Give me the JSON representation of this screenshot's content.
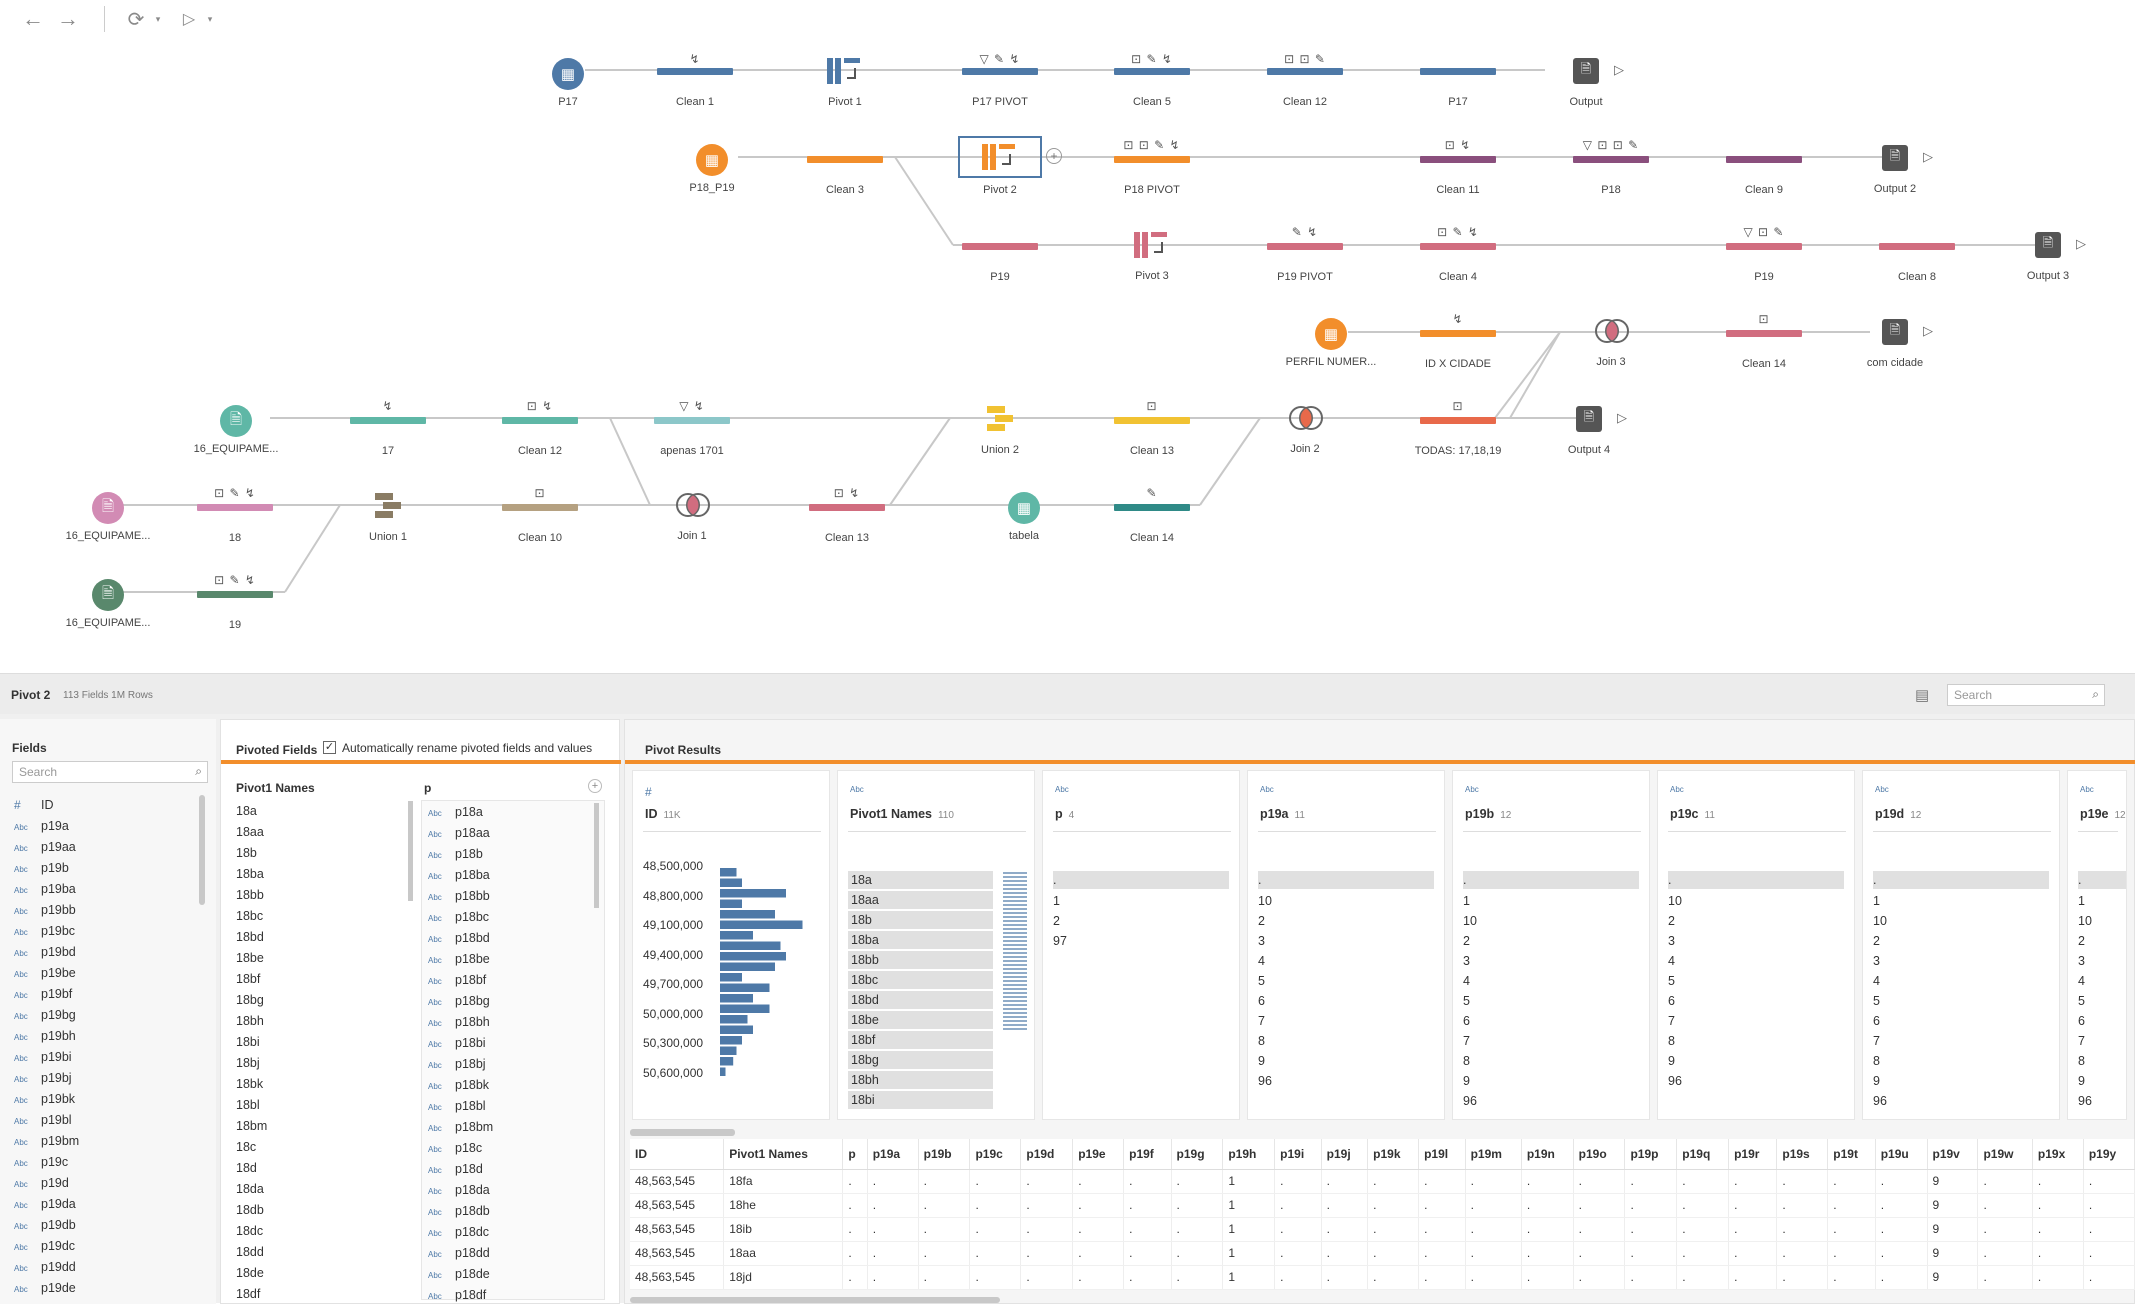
{
  "colors": {
    "blue": "#4e79a7",
    "orange": "#f28e2b",
    "purple": "#8a4f7d",
    "pink": "#d16d7f",
    "teal": "#5fb7a6",
    "lightteal": "#8cc7c9",
    "tan": "#b5a181",
    "gold": "#f1c232",
    "red": "#e8694a",
    "green": "#59886c",
    "lpink": "#d28bb4",
    "accent": "#f28e2b"
  },
  "flow": {
    "nodes": {
      "p17": "P17",
      "clean1": "Clean 1",
      "pivot1": "Pivot 1",
      "p17pivot": "P17 PIVOT",
      "clean5": "Clean 5",
      "clean12a": "Clean 12",
      "p17b": "P17",
      "output": "Output",
      "p18p19": "P18_P19",
      "clean3": "Clean 3",
      "pivot2": "Pivot 2",
      "p18pivot": "P18 PIVOT",
      "clean11": "Clean 11",
      "p18": "P18",
      "clean9": "Clean 9",
      "output2": "Output 2",
      "p19": "P19",
      "pivot3": "Pivot 3",
      "p19pivot": "P19 PIVOT",
      "clean4": "Clean 4",
      "p19b": "P19",
      "clean8": "Clean 8",
      "output3": "Output 3",
      "perfil": "PERFIL NUMER...",
      "idxcidade": "ID X CIDADE",
      "join3": "Join 3",
      "clean14b": "Clean 14",
      "comcidade": "com cidade",
      "equip1": "16_EQUIPAME...",
      "n17": "17",
      "clean12b": "Clean 12",
      "apenas": "apenas 1701",
      "union2": "Union 2",
      "clean13a": "Clean 13",
      "join2": "Join 2",
      "todas": "TODAS: 17,18,19",
      "output4": "Output 4",
      "equip2": "16_EQUIPAME...",
      "n18": "18",
      "union1": "Union 1",
      "clean10": "Clean 10",
      "join1": "Join 1",
      "clean13b": "Clean 13",
      "tabela": "tabela",
      "clean14a": "Clean 14",
      "equip3": "16_EQUIPAME...",
      "n19": "19"
    }
  },
  "panel": {
    "title": "Pivot 2",
    "meta": "113 Fields  1M Rows",
    "search_placeholder": "Search",
    "fields": {
      "title": "Fields",
      "search_placeholder": "Search",
      "items": [
        {
          "t": "#",
          "n": "ID"
        },
        {
          "t": "Abc",
          "n": "p19a"
        },
        {
          "t": "Abc",
          "n": "p19aa"
        },
        {
          "t": "Abc",
          "n": "p19b"
        },
        {
          "t": "Abc",
          "n": "p19ba"
        },
        {
          "t": "Abc",
          "n": "p19bb"
        },
        {
          "t": "Abc",
          "n": "p19bc"
        },
        {
          "t": "Abc",
          "n": "p19bd"
        },
        {
          "t": "Abc",
          "n": "p19be"
        },
        {
          "t": "Abc",
          "n": "p19bf"
        },
        {
          "t": "Abc",
          "n": "p19bg"
        },
        {
          "t": "Abc",
          "n": "p19bh"
        },
        {
          "t": "Abc",
          "n": "p19bi"
        },
        {
          "t": "Abc",
          "n": "p19bj"
        },
        {
          "t": "Abc",
          "n": "p19bk"
        },
        {
          "t": "Abc",
          "n": "p19bl"
        },
        {
          "t": "Abc",
          "n": "p19bm"
        },
        {
          "t": "Abc",
          "n": "p19c"
        },
        {
          "t": "Abc",
          "n": "p19d"
        },
        {
          "t": "Abc",
          "n": "p19da"
        },
        {
          "t": "Abc",
          "n": "p19db"
        },
        {
          "t": "Abc",
          "n": "p19dc"
        },
        {
          "t": "Abc",
          "n": "p19dd"
        },
        {
          "t": "Abc",
          "n": "p19de"
        }
      ]
    },
    "pivoted": {
      "title": "Pivoted Fields",
      "checkbox_label": "Automatically rename pivoted fields and values",
      "col1": "Pivot1 Names",
      "col2": "p",
      "names": [
        "18a",
        "18aa",
        "18b",
        "18ba",
        "18bb",
        "18bc",
        "18bd",
        "18be",
        "18bf",
        "18bg",
        "18bh",
        "18bi",
        "18bj",
        "18bk",
        "18bl",
        "18bm",
        "18c",
        "18d",
        "18da",
        "18db",
        "18dc",
        "18dd",
        "18de",
        "18df"
      ],
      "values": [
        "p18a",
        "p18aa",
        "p18b",
        "p18ba",
        "p18bb",
        "p18bc",
        "p18bd",
        "p18be",
        "p18bf",
        "p18bg",
        "p18bh",
        "p18bi",
        "p18bj",
        "p18bk",
        "p18bl",
        "p18bm",
        "p18c",
        "p18d",
        "p18da",
        "p18db",
        "p18dc",
        "p18dd",
        "p18de",
        "p18df"
      ]
    },
    "results": {
      "title": "Pivot Results",
      "id_card": {
        "type": "#",
        "name": "ID",
        "count": "11K",
        "ticks": [
          "48,500,000",
          "48,800,000",
          "49,100,000",
          "49,400,000",
          "49,700,000",
          "50,000,000",
          "50,300,000",
          "50,600,000"
        ],
        "hist": [
          0.15,
          0.2,
          0.6,
          0.2,
          0.5,
          0.75,
          0.3,
          0.55,
          0.6,
          0.5,
          0.2,
          0.45,
          0.3,
          0.45,
          0.25,
          0.3,
          0.2,
          0.15,
          0.12,
          0.05
        ]
      },
      "names_card": {
        "type": "Abc",
        "name": "Pivot1 Names",
        "count": "110",
        "values": [
          "18a",
          "18aa",
          "18b",
          "18ba",
          "18bb",
          "18bc",
          "18bd",
          "18be",
          "18bf",
          "18bg",
          "18bh",
          "18bi"
        ]
      },
      "cards": [
        {
          "type": "Abc",
          "name": "p",
          "count": "4",
          "values": [
            ".",
            "1",
            "2",
            "97"
          ]
        },
        {
          "type": "Abc",
          "name": "p19a",
          "count": "11",
          "values": [
            ".",
            "10",
            "2",
            "3",
            "4",
            "5",
            "6",
            "7",
            "8",
            "9",
            "96"
          ]
        },
        {
          "type": "Abc",
          "name": "p19b",
          "count": "12",
          "values": [
            ".",
            "1",
            "10",
            "2",
            "3",
            "4",
            "5",
            "6",
            "7",
            "8",
            "9",
            "96"
          ]
        },
        {
          "type": "Abc",
          "name": "p19c",
          "count": "11",
          "values": [
            ".",
            "10",
            "2",
            "3",
            "4",
            "5",
            "6",
            "7",
            "8",
            "9",
            "96"
          ]
        },
        {
          "type": "Abc",
          "name": "p19d",
          "count": "12",
          "values": [
            ".",
            "1",
            "10",
            "2",
            "3",
            "4",
            "5",
            "6",
            "7",
            "8",
            "9",
            "96"
          ]
        },
        {
          "type": "Abc",
          "name": "p19e",
          "count": "12",
          "values": [
            ".",
            "1",
            "10",
            "2",
            "3",
            "4",
            "5",
            "6",
            "7",
            "8",
            "9",
            "96"
          ]
        }
      ]
    },
    "table": {
      "headers": [
        "ID",
        "Pivot1 Names",
        "p",
        "p19a",
        "p19b",
        "p19c",
        "p19d",
        "p19e",
        "p19f",
        "p19g",
        "p19h",
        "p19i",
        "p19j",
        "p19k",
        "p19l",
        "p19m",
        "p19n",
        "p19o",
        "p19p",
        "p19q",
        "p19r",
        "p19s",
        "p19t",
        "p19u",
        "p19v",
        "p19w",
        "p19x",
        "p19y"
      ],
      "rows": [
        [
          "48,563,545",
          "18fa",
          ".",
          ".",
          ".",
          ".",
          ".",
          ".",
          ".",
          ".",
          "1",
          ".",
          ".",
          ".",
          ".",
          ".",
          ".",
          ".",
          ".",
          ".",
          ".",
          ".",
          ".",
          ".",
          "9",
          ".",
          ".",
          "."
        ],
        [
          "48,563,545",
          "18he",
          ".",
          ".",
          ".",
          ".",
          ".",
          ".",
          ".",
          ".",
          "1",
          ".",
          ".",
          ".",
          ".",
          ".",
          ".",
          ".",
          ".",
          ".",
          ".",
          ".",
          ".",
          ".",
          "9",
          ".",
          ".",
          "."
        ],
        [
          "48,563,545",
          "18ib",
          ".",
          ".",
          ".",
          ".",
          ".",
          ".",
          ".",
          ".",
          "1",
          ".",
          ".",
          ".",
          ".",
          ".",
          ".",
          ".",
          ".",
          ".",
          ".",
          ".",
          ".",
          ".",
          "9",
          ".",
          ".",
          "."
        ],
        [
          "48,563,545",
          "18aa",
          ".",
          ".",
          ".",
          ".",
          ".",
          ".",
          ".",
          ".",
          "1",
          ".",
          ".",
          ".",
          ".",
          ".",
          ".",
          ".",
          ".",
          ".",
          ".",
          ".",
          ".",
          ".",
          "9",
          ".",
          ".",
          "."
        ],
        [
          "48,563,545",
          "18jd",
          ".",
          ".",
          ".",
          ".",
          ".",
          ".",
          ".",
          ".",
          "1",
          ".",
          ".",
          ".",
          ".",
          ".",
          ".",
          ".",
          ".",
          ".",
          ".",
          ".",
          ".",
          ".",
          "9",
          ".",
          ".",
          "."
        ]
      ]
    }
  }
}
